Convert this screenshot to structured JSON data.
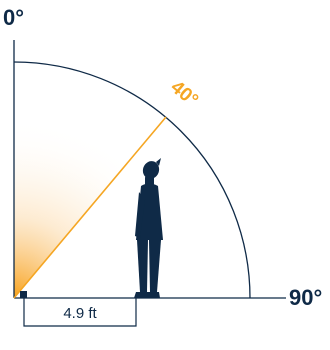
{
  "labels": {
    "top_angle": "0°",
    "right_angle": "90°",
    "viewing_angle": "40°",
    "distance": "4.9 ft"
  },
  "colors": {
    "navy": "#0f2a47",
    "orange": "#f5a623",
    "gradient_start": "#f7a21b"
  },
  "icons": [
    "person-silhouette-icon",
    "camera-sensor-icon"
  ]
}
